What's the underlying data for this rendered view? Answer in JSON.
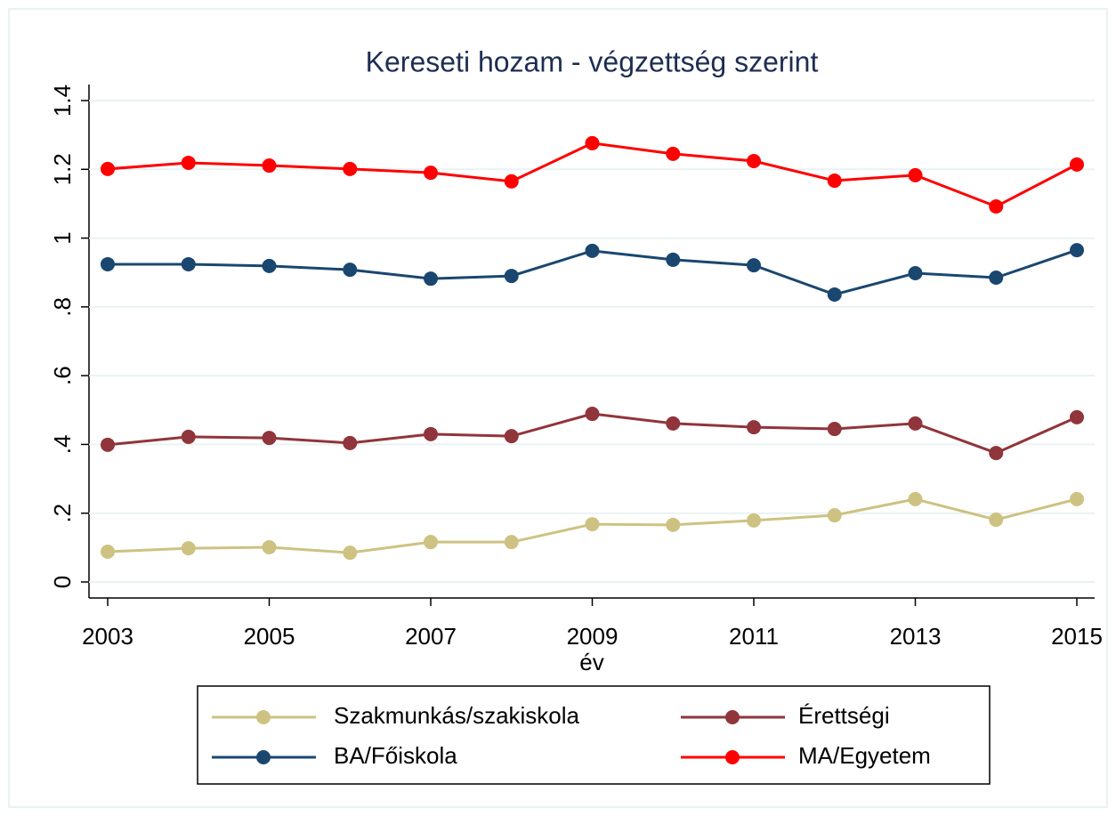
{
  "chart_data": {
    "type": "line",
    "title": "Kereseti hozam - végzettség szerint",
    "xlabel": "év",
    "x": [
      2003,
      2004,
      2005,
      2006,
      2007,
      2008,
      2009,
      2010,
      2011,
      2012,
      2013,
      2014,
      2015
    ],
    "series": [
      {
        "name": "Szakmunkás/szakiskola",
        "color": "#cdc281",
        "values": [
          0.088,
          0.098,
          0.101,
          0.085,
          0.116,
          0.116,
          0.168,
          0.166,
          0.179,
          0.194,
          0.241,
          0.181,
          0.241
        ]
      },
      {
        "name": "Érettségi",
        "color": "#90353b",
        "values": [
          0.399,
          0.422,
          0.419,
          0.404,
          0.43,
          0.424,
          0.489,
          0.461,
          0.45,
          0.445,
          0.461,
          0.375,
          0.479
        ]
      },
      {
        "name": "BA/Főiskola",
        "color": "#1a476f",
        "values": [
          0.924,
          0.924,
          0.919,
          0.908,
          0.882,
          0.89,
          0.963,
          0.937,
          0.921,
          0.836,
          0.898,
          0.885,
          0.965
        ]
      },
      {
        "name": "MA/Egyetem",
        "color": "#ff0000",
        "values": [
          1.201,
          1.219,
          1.211,
          1.201,
          1.19,
          1.165,
          1.276,
          1.245,
          1.224,
          1.167,
          1.183,
          1.092,
          1.214
        ]
      }
    ],
    "xlim": [
      2003,
      2015
    ],
    "xticks": [
      2003,
      2005,
      2007,
      2009,
      2011,
      2013,
      2015
    ],
    "ylim": [
      0,
      1.4
    ],
    "yticks": [
      0,
      {
        "value": 0.2,
        "label": ".2"
      },
      {
        "value": 0.4,
        "label": ".4"
      },
      {
        "value": 0.6,
        "label": ".6"
      },
      {
        "value": 0.8,
        "label": ".8"
      },
      1,
      1.2,
      1.4
    ],
    "grid": true,
    "legend": "bottom"
  }
}
